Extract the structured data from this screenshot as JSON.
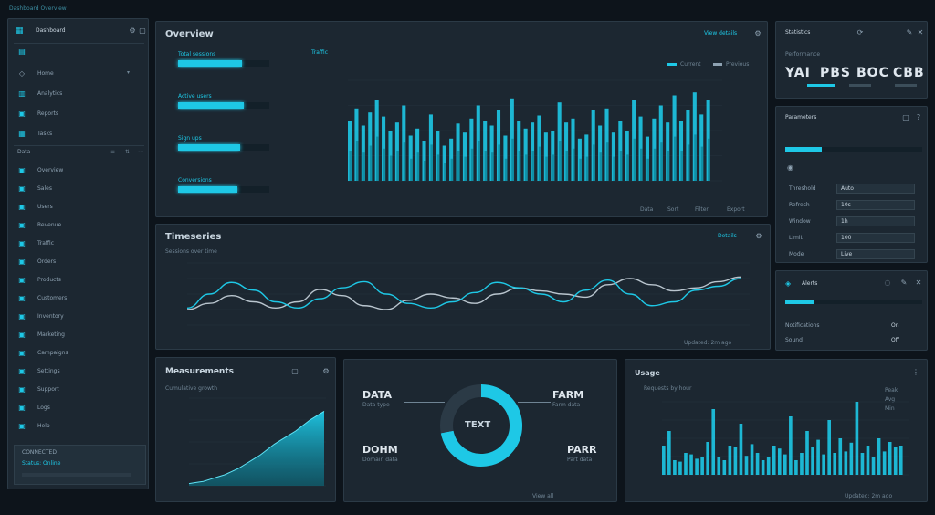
{
  "app_title": "Dashboard Overview",
  "sidebar": {
    "header": "Dashboard",
    "items": [
      {
        "icon": "list-icon",
        "label": ""
      },
      {
        "icon": "home-icon",
        "label": "Home"
      },
      {
        "icon": "analytics-icon",
        "label": "Analytics"
      },
      {
        "icon": "reports-icon",
        "label": "Reports"
      },
      {
        "icon": "tasks-icon",
        "label": "Tasks"
      }
    ],
    "section_label": "Data",
    "list": [
      "Overview",
      "Sales",
      "Users",
      "Revenue",
      "Traffic",
      "Orders",
      "Products",
      "Customers",
      "Inventory",
      "Marketing",
      "Campaigns",
      "Settings",
      "Support",
      "Logs",
      "Help"
    ],
    "footer_label": "CONNECTED",
    "footer_sub": "Status: Online"
  },
  "overview": {
    "title": "Overview",
    "link": "View details",
    "metrics": [
      {
        "label": "Total sessions",
        "fraction": 0.7
      },
      {
        "label": "Active users",
        "fraction": 0.72
      },
      {
        "label": "Sign ups",
        "fraction": 0.68
      },
      {
        "label": "Conversions",
        "fraction": 0.65
      }
    ],
    "chart_legend": [
      "Current",
      "Previous"
    ],
    "chart_title": "Traffic",
    "footer": [
      "Data",
      "Sort",
      "Filter",
      "Export"
    ]
  },
  "stats": {
    "title": "Statistics",
    "subtitle": "Performance",
    "values": [
      "YAI",
      "PBS",
      "BOC",
      "CBB"
    ]
  },
  "settings": {
    "title": "Parameters",
    "rows": [
      {
        "label": "Threshold",
        "value": "Auto"
      },
      {
        "label": "Refresh",
        "value": "10s"
      },
      {
        "label": "Window",
        "value": "1h"
      },
      {
        "label": "Limit",
        "value": "100"
      },
      {
        "label": "Mode",
        "value": "Live"
      }
    ]
  },
  "alerts": {
    "title": "Alerts",
    "rows": [
      {
        "label": "Notifications",
        "value": "On"
      },
      {
        "label": "Sound",
        "value": "Off"
      }
    ]
  },
  "trend": {
    "title": "Timeseries",
    "subtitle": "Sessions over time",
    "link": "Details",
    "footer": "Updated: 2m ago"
  },
  "growth": {
    "title": "Measurements",
    "subtitle": "Cumulative growth"
  },
  "donut": {
    "center": "TEXT",
    "labels": [
      {
        "big": "DATA",
        "small": "Data type"
      },
      {
        "big": "FARM",
        "small": "Farm data"
      },
      {
        "big": "DOHM",
        "small": "Domain data"
      },
      {
        "big": "PARR",
        "small": "Part data"
      }
    ],
    "footer": "View all"
  },
  "usage": {
    "title": "Usage",
    "subtitle": "Requests by hour",
    "legend": [
      "Peak",
      "Avg",
      "Min"
    ],
    "footer": "Updated: 2m ago"
  },
  "chart_data": [
    {
      "type": "bar",
      "series": [
        {
          "values": [
            60,
            72,
            55,
            68,
            80,
            64,
            50,
            58,
            75,
            45,
            52,
            40,
            66,
            50,
            35,
            42,
            57,
            48,
            62,
            75,
            60,
            55,
            70,
            45,
            82,
            60,
            52,
            58,
            65,
            48,
            50,
            78,
            58,
            62,
            42,
            46,
            70,
            55,
            72,
            48,
            60,
            50,
            80,
            64,
            44,
            62,
            75,
            58,
            85,
            60,
            70,
            88,
            66,
            80
          ]
        },
        {
          "values": [
            30,
            40,
            28,
            35,
            44,
            32,
            25,
            30,
            38,
            22,
            28,
            20,
            36,
            26,
            18,
            22,
            30,
            24,
            32,
            40,
            30,
            28,
            36,
            22,
            42,
            30,
            26,
            30,
            34,
            24,
            26,
            40,
            30,
            32,
            22,
            24,
            36,
            28,
            38,
            24,
            30,
            26,
            42,
            32,
            22,
            32,
            38,
            30,
            44,
            30,
            36,
            46,
            34,
            42
          ]
        }
      ],
      "ylim": [
        0,
        100
      ]
    },
    {
      "type": "line",
      "series": [
        {
          "values": [
            20,
            28,
            38,
            30,
            22,
            30,
            46,
            38,
            25,
            20,
            32,
            40,
            35,
            28,
            40,
            48,
            44,
            40,
            36,
            52,
            60,
            52,
            44,
            48,
            56,
            62
          ]
        },
        {
          "values": [
            22,
            40,
            55,
            45,
            30,
            22,
            34,
            48,
            56,
            40,
            28,
            22,
            30,
            42,
            55,
            48,
            40,
            30,
            45,
            58,
            40,
            25,
            30,
            45,
            50,
            60
          ]
        }
      ],
      "ylim": [
        0,
        80
      ]
    },
    {
      "type": "area",
      "series": [
        {
          "values": [
            2,
            3,
            4,
            6,
            8,
            10,
            13,
            16,
            20,
            24,
            28,
            33,
            38,
            42,
            46,
            50,
            55,
            60,
            64,
            68
          ]
        }
      ],
      "ylim": [
        0,
        80
      ]
    },
    {
      "type": "pie",
      "values": [
        72,
        28
      ]
    },
    {
      "type": "bar",
      "series": [
        {
          "values": [
            40,
            60,
            20,
            18,
            30,
            28,
            22,
            24,
            45,
            90,
            25,
            20,
            40,
            38,
            70,
            26,
            42,
            30,
            20,
            25,
            40,
            36,
            28,
            80,
            20,
            30,
            60,
            38,
            48,
            28,
            75,
            30,
            50,
            32,
            44,
            100,
            30,
            40,
            25,
            50,
            32,
            45,
            38,
            40
          ]
        }
      ],
      "ylim": [
        0,
        100
      ]
    }
  ]
}
